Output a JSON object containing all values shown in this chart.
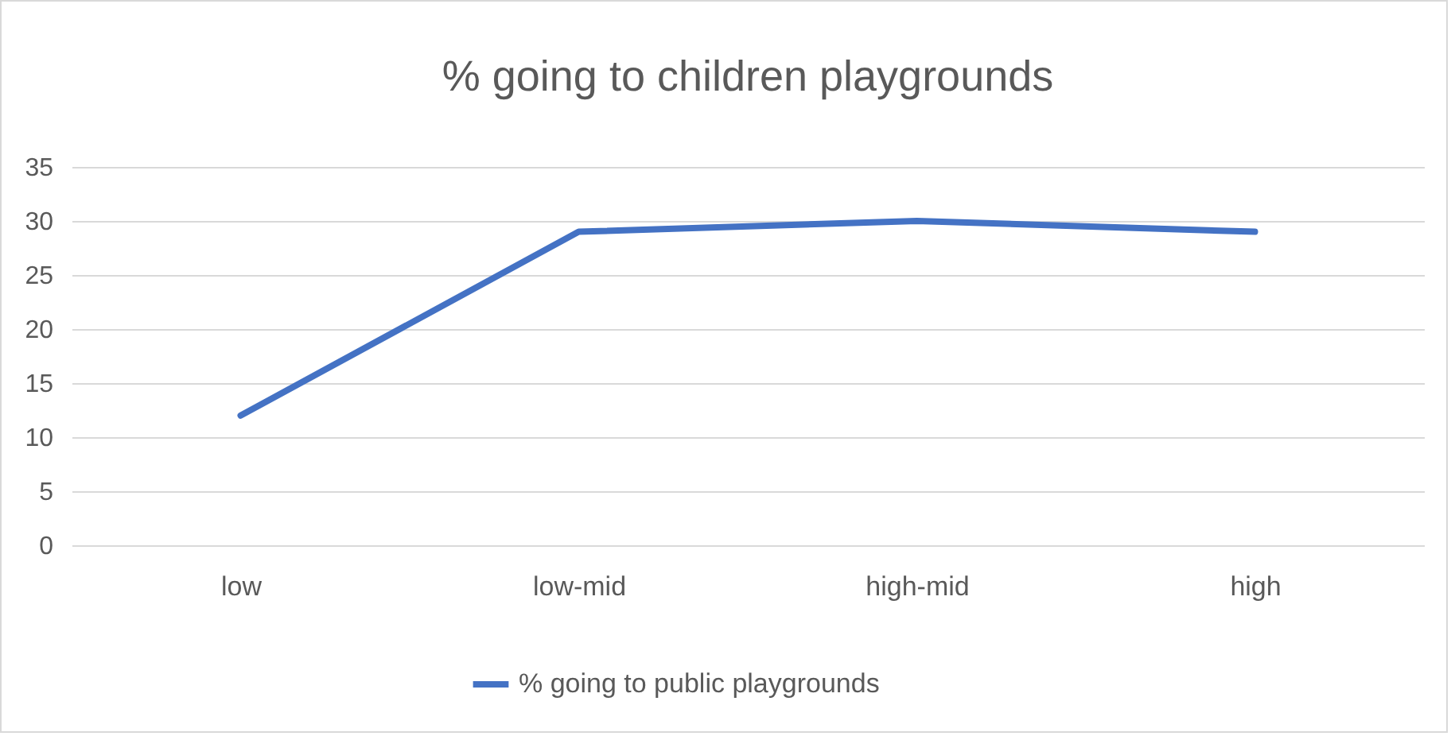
{
  "chart_data": {
    "type": "line",
    "title": "% going to children playgrounds",
    "categories": [
      "low",
      "low-mid",
      "high-mid",
      "high"
    ],
    "series": [
      {
        "name": "% going to public playgrounds",
        "color": "#4472c4",
        "values": [
          12,
          29,
          30,
          29
        ]
      }
    ],
    "ylim": [
      0,
      35
    ],
    "yticks": [
      0,
      5,
      10,
      15,
      20,
      25,
      30,
      35
    ],
    "grid": "y",
    "legend": "bottom"
  }
}
